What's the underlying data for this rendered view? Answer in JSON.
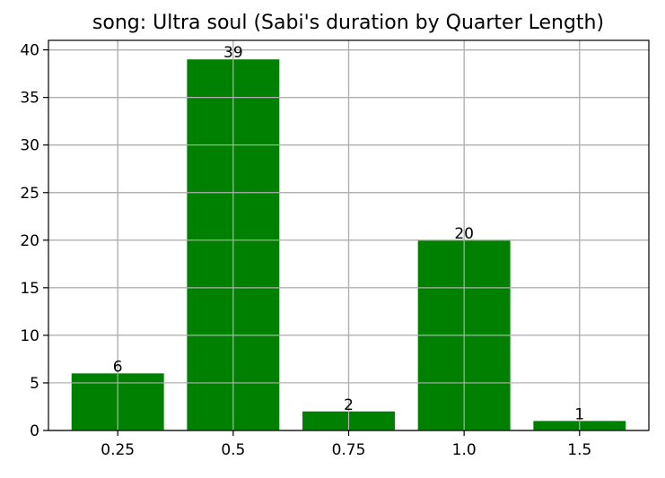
{
  "chart_data": {
    "type": "bar",
    "title": "song: Ultra soul (Sabi's duration by Quarter Length)",
    "xlabel": "",
    "ylabel": "",
    "categories": [
      "0.25",
      "0.5",
      "0.75",
      "1.0",
      "1.5"
    ],
    "values": [
      6,
      39,
      2,
      20,
      1
    ],
    "data_labels": [
      "6",
      "39",
      "2",
      "20",
      "1"
    ],
    "ylim": [
      0,
      41
    ],
    "yticks": [
      0,
      5,
      10,
      15,
      20,
      25,
      30,
      35,
      40
    ],
    "grid": true,
    "legend": "none",
    "bar_color": "#008000",
    "grid_color": "#b0b0b0"
  }
}
